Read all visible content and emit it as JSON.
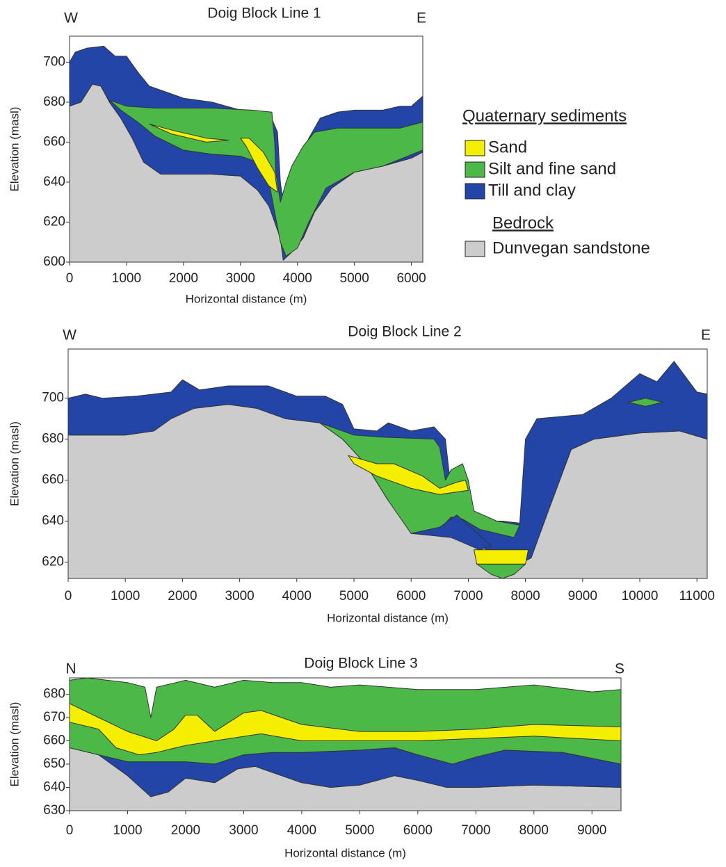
{
  "chart_data": [
    {
      "type": "cross-section",
      "title": "Doig Block Line 1",
      "left_label": "W",
      "right_label": "E",
      "xlabel": "Horizontal distance (m)",
      "ylabel": "Elevation (masl)",
      "xlim": [
        0,
        6200
      ],
      "ylim": [
        600,
        713
      ],
      "xticks": [
        0,
        1000,
        2000,
        3000,
        4000,
        5000,
        6000
      ],
      "yticks": [
        600,
        620,
        640,
        660,
        680,
        700
      ],
      "layers": [
        {
          "color": "#cccccc",
          "x": [
            0,
            200,
            400,
            550,
            700,
            900,
            1100,
            1300,
            1600,
            2500,
            3000,
            3300,
            3500,
            3700,
            3750,
            3900,
            4100,
            4300,
            4600,
            5000,
            5500,
            6000,
            6200,
            6200,
            0
          ],
          "y": [
            678,
            680,
            689,
            688,
            680,
            672,
            662,
            650,
            644,
            644,
            643,
            636,
            628,
            612,
            601,
            605,
            612,
            625,
            637,
            645,
            648,
            652,
            655,
            600,
            600
          ]
        },
        {
          "color": "#2345a8",
          "x": [
            0,
            100,
            300,
            600,
            800,
            1000,
            1200,
            1400,
            1700,
            2000,
            2500,
            3000,
            3200,
            3500,
            3650,
            3700,
            3750,
            3800,
            3900,
            4100,
            4200,
            4400,
            4700,
            5000,
            5500,
            5800,
            6000,
            6200,
            6200,
            6000,
            5500,
            5000,
            4600,
            4300,
            4100,
            3900,
            3750,
            3700,
            3500,
            3300,
            3000,
            2500,
            1600,
            1300,
            1100,
            900,
            700,
            550,
            400,
            200,
            0
          ],
          "y": [
            700,
            705,
            707,
            708,
            703,
            703,
            695,
            688,
            685,
            682,
            680,
            676,
            676,
            675,
            665,
            640,
            630,
            640,
            645,
            655,
            662,
            672,
            675,
            676,
            676,
            678,
            678,
            683,
            655,
            652,
            648,
            645,
            637,
            625,
            612,
            605,
            601,
            612,
            628,
            636,
            643,
            644,
            644,
            650,
            662,
            672,
            680,
            688,
            689,
            680,
            678
          ]
        },
        {
          "color": "#4cb848",
          "x": [
            700,
            1000,
            1500,
            2500,
            3200,
            3550,
            3600,
            3620,
            3700,
            3800,
            3900,
            4100,
            4300,
            4700,
            5200,
            5800,
            6200,
            6200,
            5500,
            5000,
            4500,
            4200,
            4000,
            3800,
            3700,
            3600,
            3500,
            3300,
            3000,
            2500,
            2000,
            1500,
            1200,
            900
          ],
          "y": [
            681,
            678,
            677,
            677,
            676,
            675,
            660,
            645,
            630,
            640,
            648,
            658,
            665,
            667,
            667,
            667,
            670,
            656,
            648,
            645,
            637,
            620,
            607,
            603,
            610,
            625,
            640,
            650,
            653,
            654,
            656,
            663,
            670,
            676
          ]
        },
        {
          "color": "#f4ee00",
          "x": [
            1400,
            1800,
            2400,
            2800,
            2400,
            1800
          ],
          "y": [
            669,
            666,
            662,
            661,
            660,
            664
          ]
        },
        {
          "color": "#f4ee00",
          "x": [
            3000,
            3150,
            3400,
            3600,
            3650,
            3500,
            3300,
            3100
          ],
          "y": [
            662,
            662,
            655,
            645,
            635,
            638,
            647,
            658
          ]
        }
      ],
      "legend": {
        "title": "Quaternary sediments",
        "items": [
          {
            "label": "Sand",
            "color": "#f4ee00"
          },
          {
            "label": "Silt and fine sand",
            "color": "#4cb848"
          },
          {
            "label": "Till and clay",
            "color": "#2345a8"
          }
        ],
        "bedrock_title": "Bedrock",
        "bedrock_items": [
          {
            "label": "Dunvegan sandstone",
            "color": "#cccccc"
          }
        ]
      }
    },
    {
      "type": "cross-section",
      "title": "Doig Block Line 2",
      "left_label": "W",
      "right_label": "E",
      "xlabel": "Horizontal distance (m)",
      "ylabel": "Elevation (masl)",
      "xlim": [
        0,
        11180
      ],
      "ylim": [
        612,
        724
      ],
      "xticks": [
        0,
        1000,
        2000,
        3000,
        4000,
        5000,
        6000,
        7000,
        8000,
        9000,
        10000,
        11000
      ],
      "yticks": [
        620,
        640,
        660,
        680,
        700
      ],
      "layers": [
        {
          "color": "#cccccc",
          "x": [
            0,
            1000,
            1500,
            1800,
            2200,
            2800,
            3300,
            3800,
            4400,
            4800,
            5200,
            5600,
            6000,
            6500,
            7000,
            7400,
            7800,
            8100,
            8400,
            8800,
            9200,
            10000,
            10700,
            11180,
            11180,
            0
          ],
          "y": [
            682,
            682,
            684,
            690,
            695,
            697,
            695,
            690,
            688,
            680,
            668,
            650,
            638,
            634,
            631,
            625,
            618,
            622,
            645,
            675,
            680,
            683,
            684,
            680,
            612,
            612
          ]
        },
        {
          "color": "#2345a8",
          "x": [
            0,
            300,
            600,
            1200,
            1800,
            2000,
            2300,
            2800,
            3500,
            4000,
            4500,
            4800,
            5000,
            5400,
            5600,
            6000,
            6400,
            6600,
            6700,
            6900,
            7000,
            7200,
            7600,
            7900,
            8000,
            8200,
            9000,
            9500,
            10000,
            10300,
            10600,
            11000,
            11180,
            11180,
            10700,
            10000,
            9200,
            8800,
            8400,
            8100,
            7800,
            7400,
            7000,
            6500,
            6000,
            5600,
            5200,
            4800,
            4400,
            3800,
            3300,
            2800,
            2200,
            1800,
            1500,
            1000,
            0
          ],
          "y": [
            700,
            702,
            700,
            701,
            703,
            709,
            704,
            706,
            706,
            701,
            701,
            697,
            685,
            684,
            688,
            684,
            686,
            680,
            655,
            664,
            650,
            640,
            640,
            639,
            680,
            690,
            692,
            700,
            712,
            708,
            718,
            703,
            702,
            680,
            684,
            683,
            680,
            675,
            645,
            622,
            618,
            625,
            631,
            634,
            638,
            650,
            668,
            680,
            688,
            690,
            695,
            697,
            695,
            690,
            684,
            682,
            682
          ]
        },
        {
          "color": "#4cb848",
          "x": [
            4400,
            5000,
            5500,
            6400,
            6500,
            6600,
            6700,
            6900,
            7000,
            7100,
            7500,
            7900,
            7800,
            7200,
            6900,
            6700,
            6500,
            6000,
            5600,
            5200,
            4800
          ],
          "y": [
            688,
            682,
            681,
            680,
            676,
            660,
            665,
            668,
            660,
            645,
            640,
            638,
            632,
            636,
            641,
            642,
            636,
            634,
            650,
            668,
            680
          ]
        },
        {
          "color": "#2345a8",
          "x": [
            6000,
            6500,
            6800,
            7000,
            7400,
            7200,
            6700
          ],
          "y": [
            634,
            637,
            643,
            638,
            628,
            626,
            632
          ]
        },
        {
          "color": "#f4ee00",
          "x": [
            4900,
            5400,
            5700,
            6200,
            6500,
            6800,
            6950,
            7000,
            6500,
            6000,
            5400,
            5000
          ],
          "y": [
            672,
            668,
            668,
            662,
            656,
            659,
            660,
            655,
            653,
            656,
            662,
            668
          ]
        },
        {
          "color": "#f4ee00",
          "x": [
            7100,
            8050,
            8000,
            7150
          ],
          "y": [
            626,
            626,
            619,
            619
          ]
        },
        {
          "color": "#4cb848",
          "x": [
            7150,
            8000,
            7800,
            7600,
            7400
          ],
          "y": [
            619,
            619,
            614,
            612,
            614
          ]
        },
        {
          "color": "#4cb848",
          "x": [
            9800,
            10100,
            10400,
            10100
          ],
          "y": [
            698,
            700,
            698,
            696
          ]
        }
      ]
    },
    {
      "type": "cross-section",
      "title": "Doig Block Line 3",
      "left_label": "N",
      "right_label": "S",
      "xlabel": "Horizontal distance (m)",
      "ylabel": "Elevation (masl)",
      "xlim": [
        0,
        9500
      ],
      "ylim": [
        630,
        687
      ],
      "xticks": [
        0,
        1000,
        2000,
        3000,
        4000,
        5000,
        6000,
        7000,
        8000,
        9000
      ],
      "yticks": [
        630,
        640,
        650,
        660,
        670,
        680
      ],
      "layers": [
        {
          "color": "#cccccc",
          "x": [
            0,
            500,
            1000,
            1400,
            1700,
            2000,
            2500,
            2900,
            3200,
            4000,
            4500,
            5000,
            5600,
            6000,
            6500,
            7000,
            8000,
            9500,
            9500,
            0
          ],
          "y": [
            657,
            654,
            645,
            636,
            638,
            644,
            642,
            648,
            649,
            642,
            640,
            641,
            645,
            643,
            640,
            640,
            641,
            640,
            630,
            630
          ]
        },
        {
          "color": "#2345a8",
          "x": [
            0,
            500,
            1000,
            2000,
            2500,
            3000,
            3500,
            4000,
            5000,
            5600,
            6000,
            6600,
            7000,
            7500,
            8500,
            9500,
            9500,
            8000,
            7000,
            6500,
            6000,
            5600,
            5000,
            4500,
            4000,
            3200,
            2900,
            2500,
            2000,
            1700,
            1400,
            1000,
            500,
            0
          ],
          "y": [
            657,
            654,
            651,
            651,
            650,
            654,
            655,
            655,
            656,
            657,
            654,
            650,
            653,
            656,
            655,
            650,
            640,
            641,
            640,
            640,
            643,
            645,
            641,
            640,
            642,
            649,
            648,
            642,
            644,
            638,
            636,
            645,
            654,
            657
          ]
        },
        {
          "color": "#4cb848",
          "x": [
            0,
            300,
            1000,
            1300,
            1400,
            1500,
            2000,
            2500,
            3000,
            3500,
            4000,
            4500,
            5000,
            6000,
            7000,
            8000,
            9000,
            9500,
            9500,
            8500,
            7500,
            7000,
            6600,
            6000,
            5600,
            5000,
            4000,
            3500,
            3000,
            2500,
            2000,
            1000,
            500,
            0
          ],
          "y": [
            686,
            687,
            685,
            683,
            670,
            683,
            686,
            683,
            686,
            685,
            685,
            683,
            684,
            682,
            682,
            684,
            681,
            682,
            650,
            655,
            656,
            653,
            650,
            654,
            657,
            656,
            655,
            655,
            654,
            650,
            651,
            651,
            654,
            657
          ]
        },
        {
          "color": "#f4ee00",
          "x": [
            0,
            500,
            1000,
            1500,
            1800,
            2000,
            2200,
            2500,
            3000,
            3300,
            4000,
            5000,
            6000,
            7000,
            8000,
            9500,
            9500,
            8000,
            7000,
            6000,
            5000,
            4000,
            3300,
            2500,
            2000,
            1500,
            1200,
            800,
            500,
            0
          ],
          "y": [
            676,
            670,
            664,
            660,
            665,
            671,
            671,
            664,
            672,
            673,
            667,
            664,
            664,
            665,
            667,
            666,
            660,
            662,
            661,
            660,
            660,
            660,
            663,
            660,
            658,
            655,
            654,
            657,
            665,
            668
          ]
        }
      ]
    }
  ]
}
